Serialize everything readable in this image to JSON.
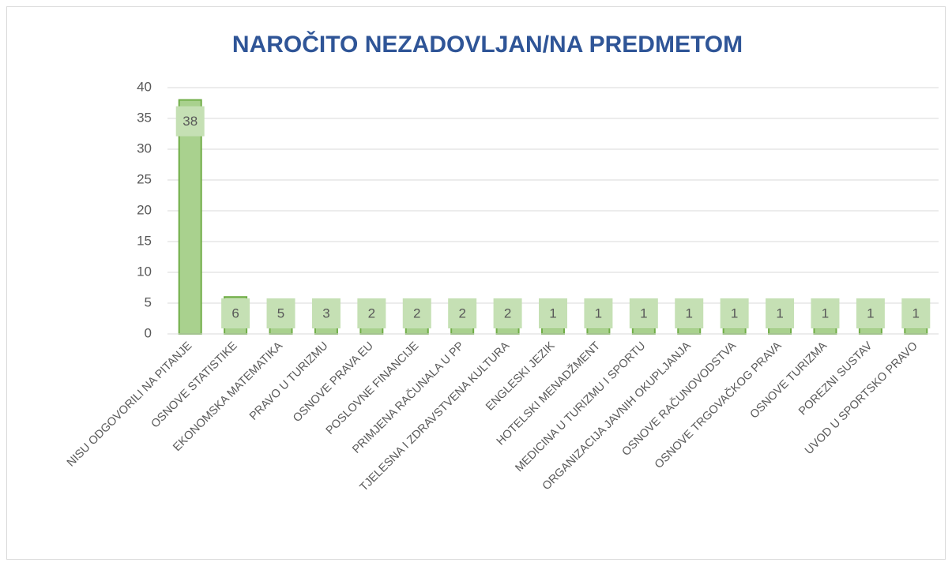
{
  "chart_data": {
    "type": "bar",
    "title": "NAROČITO NEZADOVLJAN/NA PREDMETOM",
    "categories": [
      "NISU ODGOVORILI NA PITANJE",
      "OSNOVE STATISTIKE",
      "EKONOMSKA MATEMATIKA",
      "PRAVO U TURIZMU",
      "OSNOVE PRAVA EU",
      "POSLOVNE FINANCIJE",
      "PRIMJENA RAČUNALA U PP",
      "TJELESNA I ZDRAVSTVENA KULTURA",
      "ENGLESKI JEZIK",
      "HOTELSKI MENADŽMENT",
      "MEDICINA U TURIZMU I SPORTU",
      "ORGANIZACIJA JAVNIH OKUPLJANJA",
      "OSNOVE RAČUNOVODSTVA",
      "OSNOVE TRGOVAČKOG PRAVA",
      "OSNOVE TURIZMA",
      "POREZNI SUSTAV",
      "UVOD U SPORTSKO PRAVO"
    ],
    "values": [
      38,
      6,
      5,
      3,
      2,
      2,
      2,
      2,
      1,
      1,
      1,
      1,
      1,
      1,
      1,
      1,
      1
    ],
    "color": "#a9d18e",
    "edge_color": "#70ad47",
    "label_bg": "#c5e0b4",
    "ylim": [
      0,
      40
    ],
    "yticks": [
      0,
      5,
      10,
      15,
      20,
      25,
      30,
      35,
      40
    ],
    "grid": true
  }
}
